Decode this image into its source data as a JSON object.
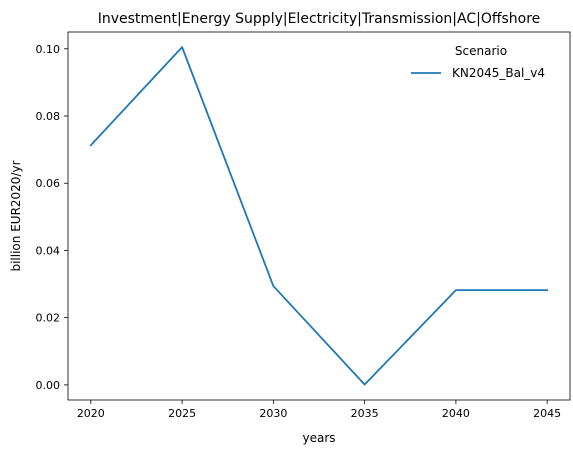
{
  "chart_data": {
    "type": "line",
    "title": "Investment|Energy Supply|Electricity|Transmission|AC|Offshore",
    "xlabel": "years",
    "ylabel": "billion EUR2020/yr",
    "x": [
      2020,
      2025,
      2030,
      2035,
      2040,
      2045
    ],
    "xticks": [
      "2020",
      "2025",
      "2030",
      "2035",
      "2040",
      "2045"
    ],
    "yticks": [
      "0.00",
      "0.02",
      "0.04",
      "0.06",
      "0.08",
      "0.10"
    ],
    "xlim": [
      2018.75,
      2046.25
    ],
    "ylim": [
      -0.0045,
      0.105
    ],
    "grid": false,
    "legend": {
      "title": "Scenario",
      "placement": "top-right"
    },
    "series": [
      {
        "name": "KN2045_Bal_v4",
        "color": "#1f77b4",
        "values": [
          0.0713,
          0.1005,
          0.0294,
          0.0001,
          0.0282,
          0.0282
        ]
      }
    ]
  }
}
